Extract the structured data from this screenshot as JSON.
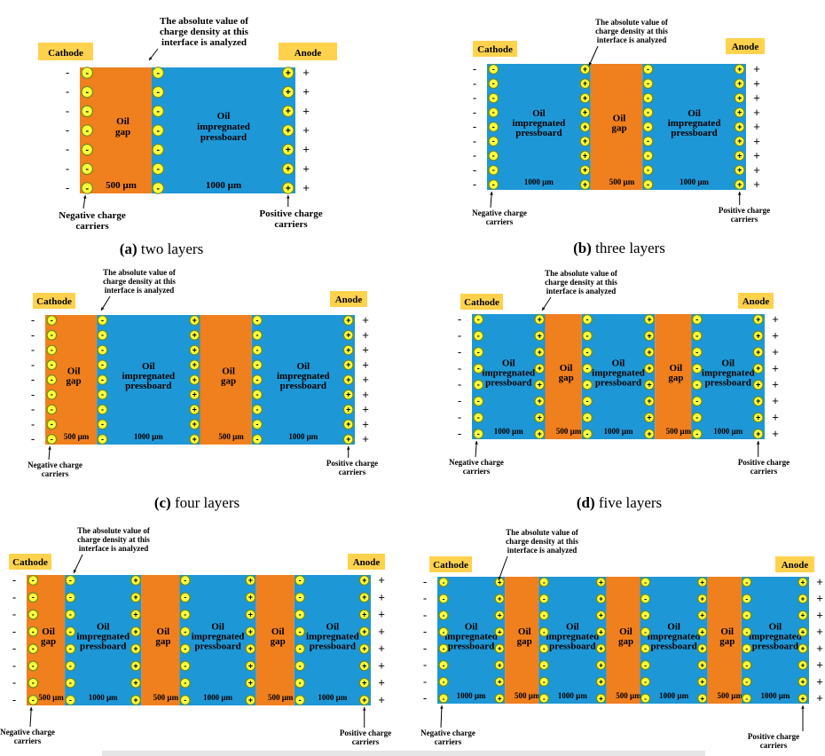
{
  "colors": {
    "oil_gap": "#f07f1e",
    "pressboard": "#1e97d6",
    "label_bg": "#ffd24d",
    "carrier_fill": "#ffff3c",
    "carrier_stroke": "#6e8a1e"
  },
  "labels": {
    "cathode": "Cathode",
    "anode": "Anode",
    "oil_gap": [
      "Oil",
      "gap"
    ],
    "pressboard": [
      "Oil",
      "impregnated",
      "pressboard"
    ],
    "interface_note": [
      "The absolute value of",
      "charge density at this",
      "interface is analyzed"
    ],
    "negative_carriers": [
      "Negative charge",
      "carriers"
    ],
    "positive_carriers": [
      "Positive charge",
      "carriers"
    ],
    "gap_thickness": "500 µm",
    "board_thickness": "1000 µm",
    "electrode_minus": "-",
    "electrode_plus": "+"
  },
  "panels": [
    {
      "id": "a",
      "caption_tag": "(a)",
      "caption_text": " two layers",
      "layers": [
        "gap",
        "board"
      ]
    },
    {
      "id": "b",
      "caption_tag": "(b)",
      "caption_text": " three layers",
      "layers": [
        "board",
        "gap",
        "board"
      ]
    },
    {
      "id": "c",
      "caption_tag": "(c)",
      "caption_text": " four layers",
      "layers": [
        "gap",
        "board",
        "gap",
        "board"
      ]
    },
    {
      "id": "d",
      "caption_tag": "(d)",
      "caption_text": " five layers",
      "layers": [
        "board",
        "gap",
        "board",
        "gap",
        "board"
      ]
    },
    {
      "id": "e",
      "caption_tag": "",
      "caption_text": "",
      "layers": [
        "gap",
        "board",
        "gap",
        "board",
        "gap",
        "board"
      ]
    },
    {
      "id": "f",
      "caption_tag": "",
      "caption_text": "",
      "layers": [
        "board",
        "gap",
        "board",
        "gap",
        "board",
        "gap",
        "board"
      ]
    }
  ]
}
